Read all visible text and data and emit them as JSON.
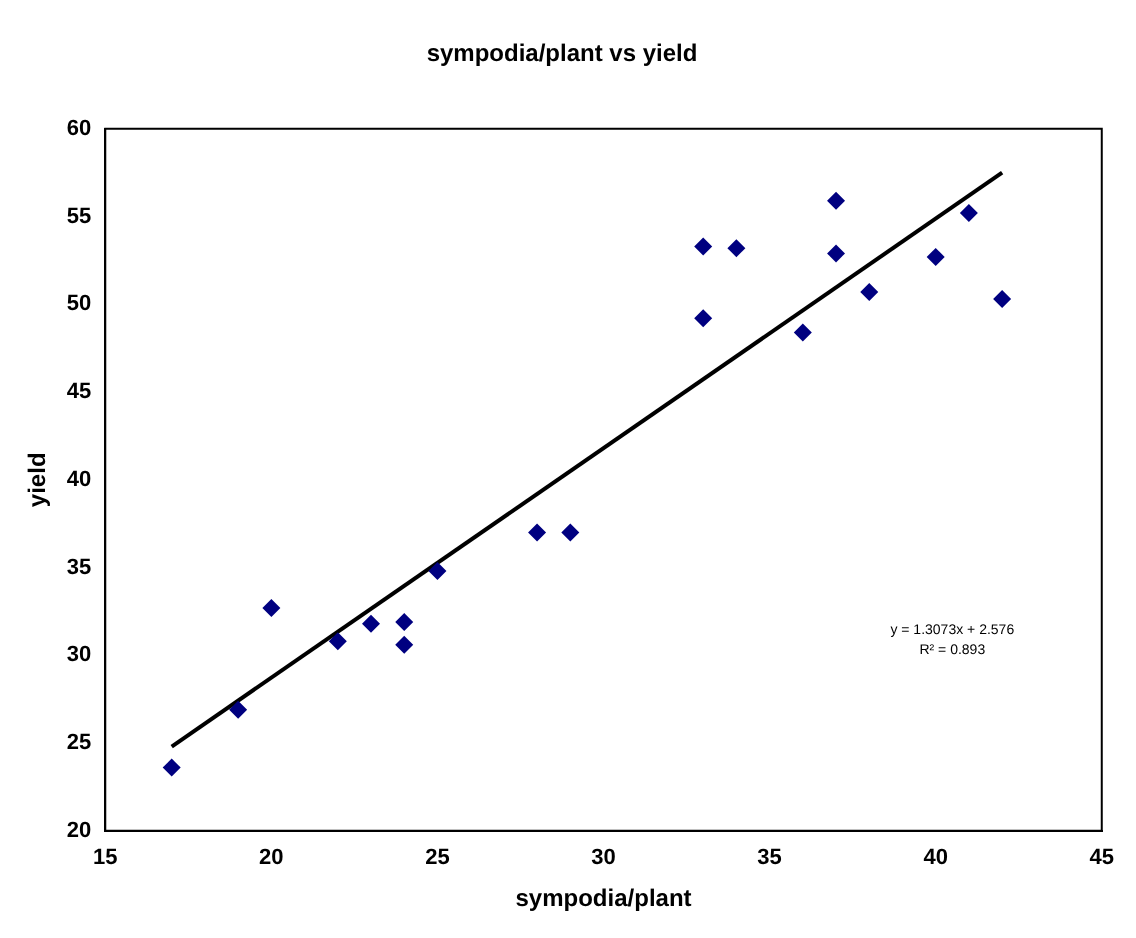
{
  "chart_data": {
    "type": "scatter",
    "title": "sympodia/plant vs yield",
    "xlabel": "sympodia/plant",
    "ylabel": "yield",
    "marker": "diamond",
    "grid": false,
    "legend": false,
    "xlim": [
      15,
      45
    ],
    "xticks": [
      15,
      20,
      25,
      30,
      35,
      40,
      45
    ],
    "ylim": [
      20,
      60
    ],
    "yticks": [
      20,
      25,
      30,
      35,
      40,
      45,
      50,
      55,
      60
    ],
    "annotations": [
      "y = 1.3073x + 2.576\nR² = 0.893"
    ],
    "series": [
      {
        "color": "#000080",
        "x": [
          17,
          19,
          20,
          22,
          23,
          24,
          24,
          25,
          28,
          29,
          33,
          33,
          34,
          36,
          37,
          37,
          38,
          40,
          41,
          42
        ],
        "values": [
          23.6,
          26.9,
          32.7,
          30.8,
          31.8,
          31.9,
          30.6,
          34.8,
          37,
          37,
          53.3,
          49.2,
          53.2,
          48.4,
          55.9,
          52.9,
          50.7,
          52.7,
          55.2,
          50.3
        ]
      },
      {
        "type": "line",
        "color": "#000000",
        "marker": "none",
        "x": [
          17,
          42
        ],
        "values": [
          24.8,
          57.5
        ]
      }
    ]
  }
}
